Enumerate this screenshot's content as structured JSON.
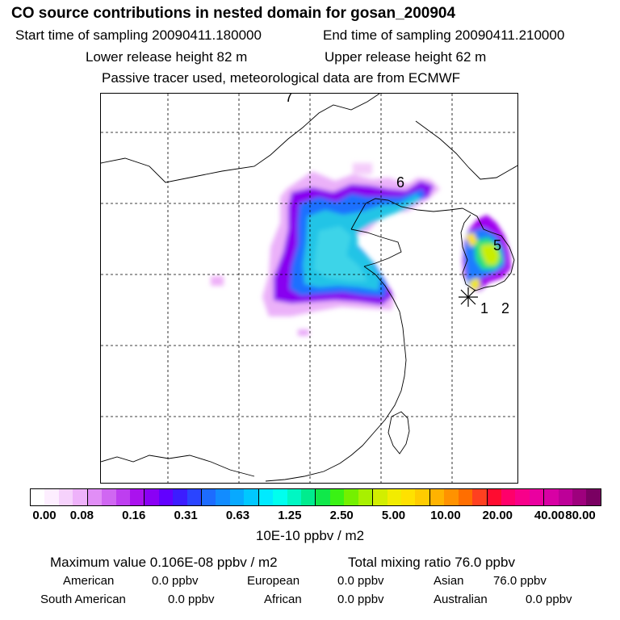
{
  "header": {
    "title": "CO  source contributions in nested domain for gosan_200904",
    "start_time": "Start time of sampling 20090411.180000",
    "end_time": "End time of sampling 20090411.210000",
    "lower_release": "Lower release height   82 m",
    "upper_release": "Upper release height   62 m",
    "tracer_note": "Passive tracer used, meteorological data are from ECMWF"
  },
  "chart_data": {
    "type": "heatmap",
    "title": "CO  source contributions in nested domain for gosan_200904",
    "grid": true,
    "site_labels": [
      "1",
      "2",
      "5",
      "6",
      "7"
    ],
    "colorbar": {
      "unit": "10E-10 ppbv / m2",
      "ticks": [
        "0.00",
        "0.08",
        "0.16",
        "0.31",
        "0.63",
        "1.25",
        "2.50",
        "5.00",
        "10.00",
        "20.00",
        "40.00",
        "80.00"
      ],
      "colors": [
        "#ffffff",
        "#fdeeff",
        "#f6d2fc",
        "#eeb2fa",
        "#e18ef6",
        "#d067f2",
        "#be3ef0",
        "#aa12ee",
        "#8a00f5",
        "#6200ff",
        "#3c1cff",
        "#2a44ff",
        "#1d6cff",
        "#128cff",
        "#08a9ff",
        "#00c8ff",
        "#00eaff",
        "#00ffee",
        "#00f7c3",
        "#00ec8e",
        "#10e84a",
        "#3af214",
        "#74f000",
        "#a8f000",
        "#d2ee00",
        "#f2ec00",
        "#ffe100",
        "#ffcc00",
        "#ffb300",
        "#ff9200",
        "#ff6e00",
        "#ff4020",
        "#ff0c30",
        "#ff006a",
        "#f8008a",
        "#ea00a0",
        "#d800a4",
        "#bd0098",
        "#9e007d",
        "#7a0062"
      ]
    }
  },
  "stats": {
    "max_value": "Maximum value  0.106E-08 ppbv / m2",
    "total_mixing": "Total mixing ratio       76.0 ppbv",
    "american_label": "American",
    "american_value": "0.0 ppbv",
    "european_label": "European",
    "european_value": "0.0 ppbv",
    "asian_label": "Asian",
    "asian_value": "76.0 ppbv",
    "south_american_label": "South American",
    "south_american_value": "0.0 ppbv",
    "african_label": "African",
    "african_value": "0.0 ppbv",
    "australian_label": "Australian",
    "australian_value": "0.0 ppbv"
  }
}
